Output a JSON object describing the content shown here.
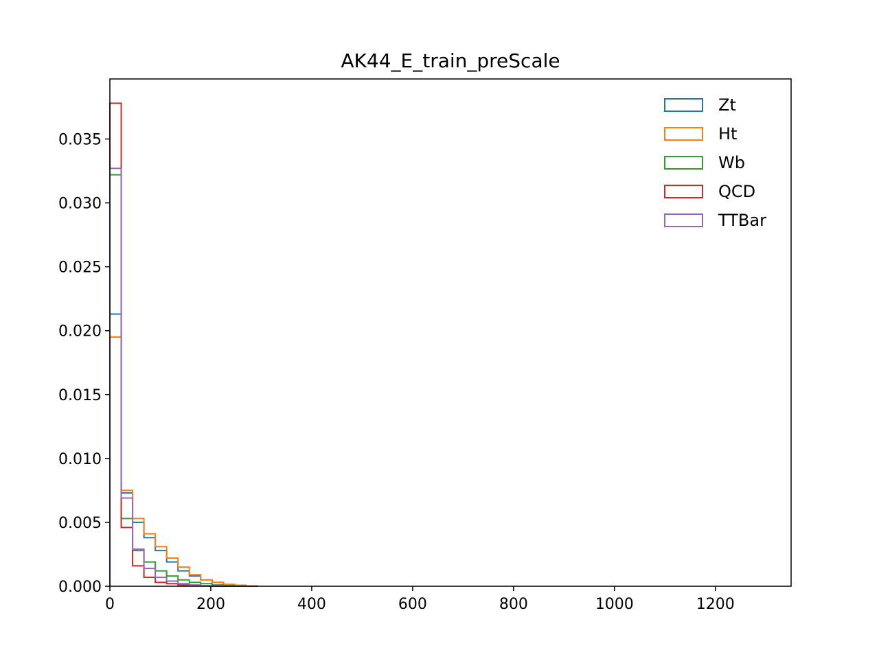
{
  "chart_data": {
    "type": "histogram",
    "title": "AK44_E_train_preScale",
    "xlabel": "",
    "ylabel": "",
    "xlim": [
      0,
      1350
    ],
    "ylim": [
      0,
      0.0397
    ],
    "x_ticks": [
      0,
      200,
      400,
      600,
      800,
      1000,
      1200
    ],
    "x_tick_labels": [
      "0",
      "200",
      "400",
      "600",
      "800",
      "1000",
      "1200"
    ],
    "y_ticks": [
      0,
      0.005,
      0.01,
      0.015,
      0.02,
      0.025,
      0.03,
      0.035
    ],
    "y_tick_labels": [
      "0.000",
      "0.005",
      "0.010",
      "0.015",
      "0.020",
      "0.025",
      "0.030",
      "0.035"
    ],
    "grid": false,
    "legend_position": "top-right",
    "bin_edges": [
      0,
      22.5,
      45,
      67.5,
      90,
      112.5,
      135,
      157.5,
      180,
      202.5,
      225,
      247.5,
      270,
      292.5
    ],
    "series": [
      {
        "name": "Zt",
        "color": "#1f77b4",
        "values": [
          0.0213,
          0.0073,
          0.005,
          0.0038,
          0.0028,
          0.0019,
          0.0012,
          0.0008,
          0.0005,
          0.0003,
          0.0001,
          5e-05,
          2e-05
        ]
      },
      {
        "name": "Ht",
        "color": "#ff7f0e",
        "values": [
          0.0195,
          0.0075,
          0.0053,
          0.0041,
          0.0031,
          0.0022,
          0.0015,
          0.0009,
          0.0005,
          0.0003,
          0.00015,
          8e-05,
          3e-05
        ]
      },
      {
        "name": "Wb",
        "color": "#2ca02c",
        "values": [
          0.0322,
          0.0053,
          0.0028,
          0.0019,
          0.0012,
          0.0008,
          0.0005,
          0.0003,
          0.0002,
          0.0001,
          5e-05,
          2e-05,
          1e-05
        ]
      },
      {
        "name": "QCD",
        "color": "#d62728",
        "values": [
          0.0378,
          0.0046,
          0.0016,
          0.0007,
          0.0003,
          0.0002,
          0.0001,
          5e-05,
          2e-05,
          1e-05,
          0,
          0,
          0
        ]
      },
      {
        "name": "TTBar",
        "color": "#9467bd",
        "values": [
          0.0327,
          0.0069,
          0.0029,
          0.0014,
          0.0007,
          0.0004,
          0.0002,
          0.0001,
          5e-05,
          2e-05,
          1e-05,
          0,
          0
        ]
      }
    ]
  }
}
